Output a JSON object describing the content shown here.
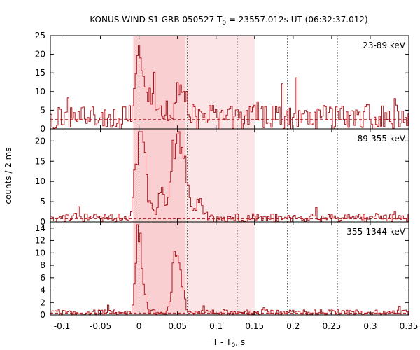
{
  "chart_data": {
    "type": "line",
    "subtype": "step-histogram",
    "title_prefix": "KONUS-WIND S1 GRB 050527 T",
    "title_sub": "0",
    "title_suffix": " = 23557.012s UT (06:32:37.012)",
    "xlabel_prefix": "T - T",
    "xlabel_sub": "0",
    "xlabel_suffix": ", s",
    "ylabel": "counts / 2 ms",
    "xlim": [
      -0.115,
      0.35
    ],
    "xticks": [
      -0.1,
      -0.05,
      0,
      0.05,
      0.1,
      0.15,
      0.2,
      0.25,
      0.3,
      0.35
    ],
    "xtick_labels": [
      "-0.1",
      "-0.05",
      "0",
      "0.05",
      "0.1",
      "0.15",
      "0.2",
      "0.25",
      "0.3",
      "0.35"
    ],
    "bin_width_s": 0.002,
    "shaded_regions": [
      {
        "start": -0.0075,
        "end": 0.06,
        "color": "#f9cfd2"
      },
      {
        "start": 0.06,
        "end": 0.15,
        "color": "#fbe5e7"
      }
    ],
    "vertical_lines": [
      0.0,
      0.0625,
      0.1275,
      0.1925,
      0.2575
    ],
    "colors": {
      "signal": "#b0151c",
      "background_line": "#b0151c",
      "grid": "#000000"
    },
    "panels": [
      {
        "label": "23-89 keV",
        "ylim": [
          0,
          25
        ],
        "yticks": [
          0,
          5,
          10,
          15,
          20,
          25
        ],
        "background": 2.5,
        "base_noise": 3.0,
        "peaks": [
          {
            "center": -0.0015,
            "height": 13.5,
            "width": 0.004
          },
          {
            "center": 0.0055,
            "height": 6.5,
            "width": 0.005
          },
          {
            "center": 0.0535,
            "height": 8.0,
            "width": 0.006
          },
          {
            "center": 0.0145,
            "height": 2.5,
            "width": 0.01
          },
          {
            "center": 0.0285,
            "height": 2.0,
            "width": 0.01
          }
        ]
      },
      {
        "label": "89-355 keV",
        "ylim": [
          0,
          23
        ],
        "yticks": [
          0,
          5,
          10,
          15,
          20
        ],
        "background": 0.8,
        "base_noise": 1.0,
        "peaks": [
          {
            "center": -0.0015,
            "height": 15.5,
            "width": 0.005
          },
          {
            "center": 0.0045,
            "height": 12.5,
            "width": 0.004
          },
          {
            "center": 0.0135,
            "height": 3.5,
            "width": 0.003
          },
          {
            "center": 0.0285,
            "height": 7.0,
            "width": 0.004
          },
          {
            "center": 0.0435,
            "height": 15.0,
            "width": 0.004
          },
          {
            "center": 0.0525,
            "height": 18.5,
            "width": 0.004
          },
          {
            "center": 0.0605,
            "height": 9.0,
            "width": 0.004
          },
          {
            "center": 0.0765,
            "height": 4.0,
            "width": 0.006
          }
        ]
      },
      {
        "label": "355-1344 keV",
        "ylim": [
          0,
          15
        ],
        "yticks": [
          0,
          2,
          4,
          6,
          8,
          10,
          12,
          14
        ],
        "background": 0.3,
        "base_noise": 0.4,
        "peaks": [
          {
            "center": -0.0025,
            "height": 12.5,
            "width": 0.003
          },
          {
            "center": 0.0025,
            "height": 5.0,
            "width": 0.004
          },
          {
            "center": 0.0465,
            "height": 9.5,
            "width": 0.004
          },
          {
            "center": 0.0545,
            "height": 3.5,
            "width": 0.004
          }
        ]
      }
    ]
  }
}
